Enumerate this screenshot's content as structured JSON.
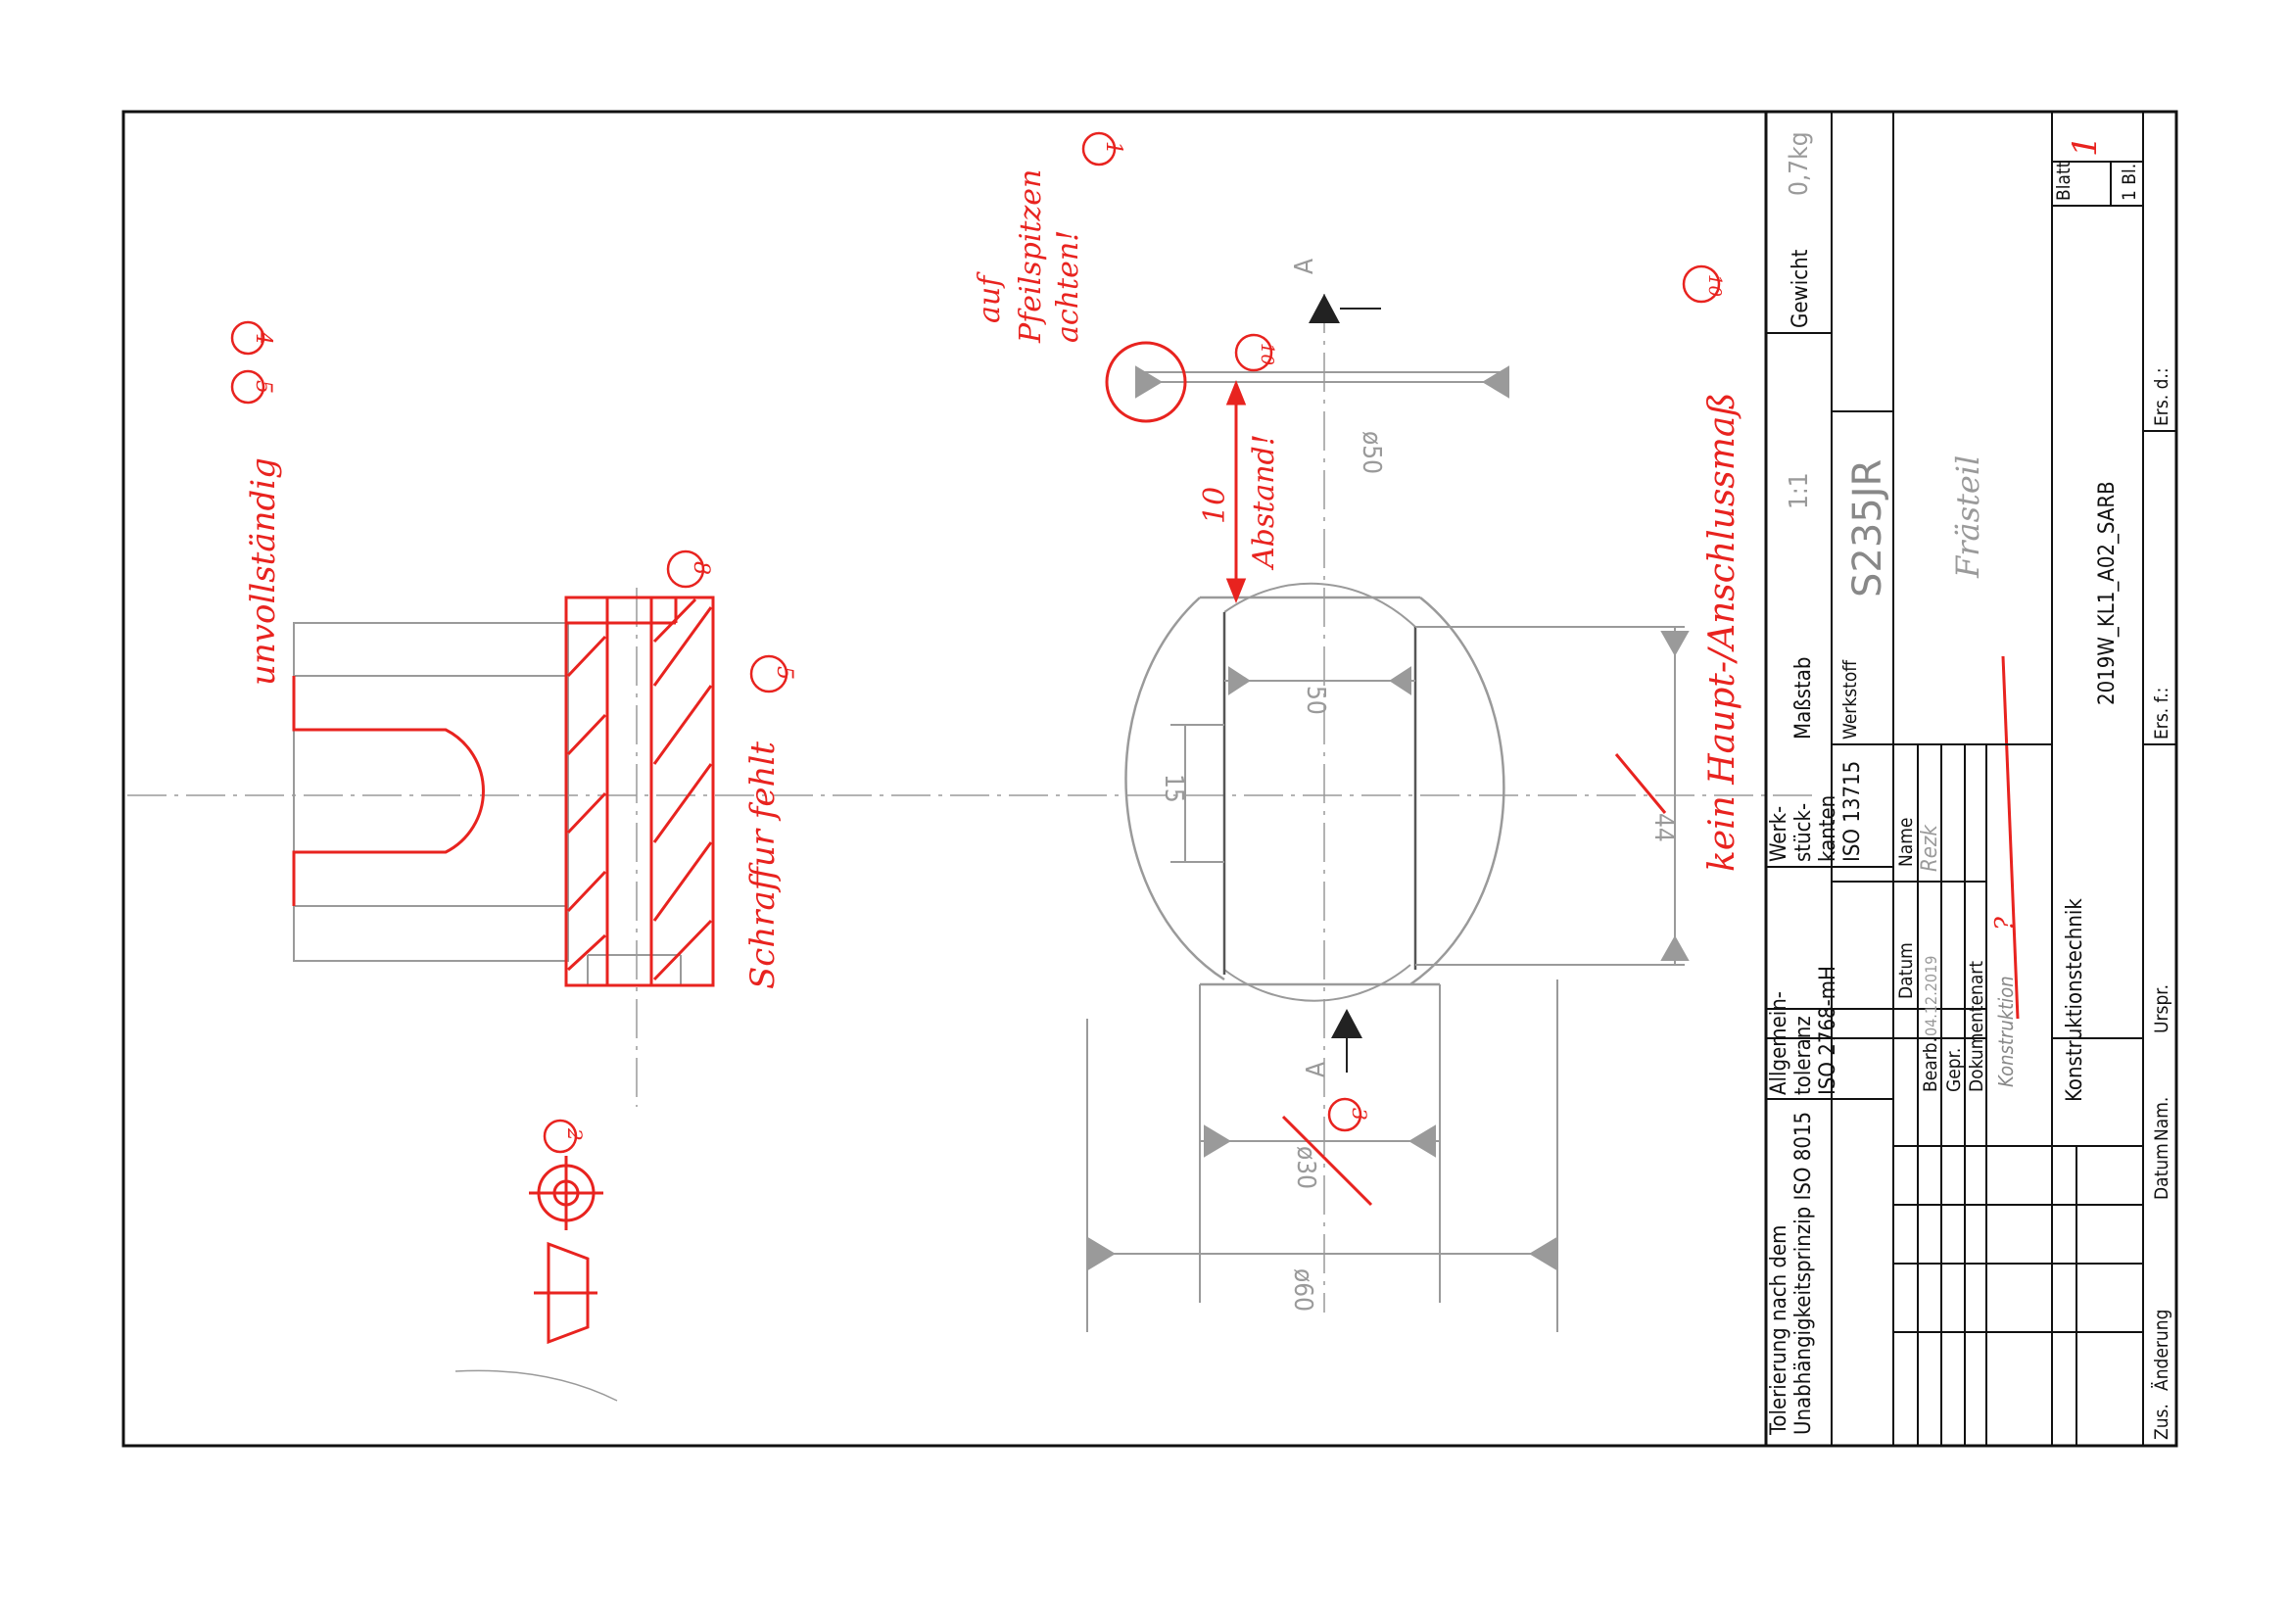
{
  "colors": {
    "ink": "#111111",
    "pencil": "#9a9a9a",
    "correction": "#e8231f"
  },
  "title_block": {
    "tolerancing": "Tolerierung nach dem Unabhängigkeitsprinzip ISO 8015",
    "general_tolerance": [
      "Allgemein-",
      "toleranz",
      "ISO 2768-mH"
    ],
    "workpiece_edges": [
      "Werk-",
      "stück-",
      "kanten",
      "ISO 13715"
    ],
    "scale_label": "Maßstab",
    "scale_value": "1:1",
    "weight_label": "Gewicht",
    "weight_value": "0,7kg",
    "material_label": "Werkstoff",
    "material_value": "S235JR",
    "part_name": "Frästeil",
    "datum_label": "Datum",
    "name_label": "Name",
    "bearb_label": "Bearb.",
    "bearb_date": "04.12.2019",
    "bearb_name": "Rezk",
    "gepr_label": "Gepr.",
    "doc_type_label": "Dokumentenart",
    "doc_type_value": "Konstruktion",
    "doc_type_mark": "?",
    "department": "Konstruktionstechnik",
    "drawing_number": "2019W_KL1_A02_SARB",
    "sheet_label": "Blatt",
    "sheet_value": "1",
    "sheet_total": "1 Bl.",
    "ers_f": "Ers. f.:",
    "ers_d": "Ers. d.:",
    "ursprung": "Urspr.",
    "revision_cols": [
      "Zus.",
      "Änderung",
      "Datum",
      "Nam."
    ]
  },
  "dimensions": {
    "d50": "ø50",
    "d60": "ø60",
    "d30": "ø30",
    "w50": "50",
    "w15": "15",
    "w44": "44",
    "w10": "10",
    "section": "A"
  },
  "annotations": {
    "arrow_tips": [
      "auf",
      "Pfeilspitzen",
      "achten!"
    ],
    "arrow_tips_mark": "1",
    "incomplete": "unvollständig",
    "incomplete_marks": [
      "4",
      "5"
    ],
    "hatching_missing": "Schraffur fehlt",
    "hatching_mark": "5",
    "hatch_line_mark": "8",
    "distance": "Abstand!",
    "distance_mark": "10",
    "no_main_dim": "kein Haupt-/Anschlussmaß",
    "no_main_dim_mark": "10",
    "d30_mark": "3",
    "projection_mark": "2"
  }
}
